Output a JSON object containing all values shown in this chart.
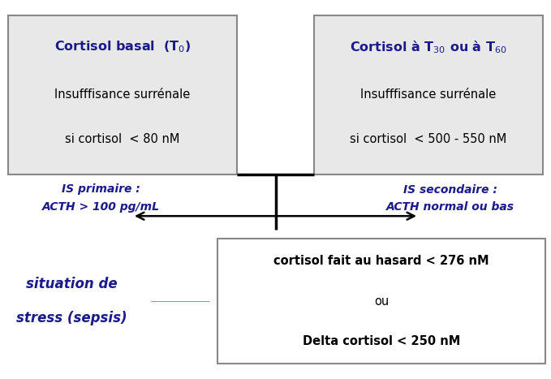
{
  "bg_color": "#ffffff",
  "box_fill": "#e8e8e8",
  "box_edge": "#888888",
  "blue_title": "#1a1a8c",
  "black_text": "#000000",
  "box1_line1": "Cortisol basal  (T$_0$)",
  "box1_line2": "Insufffisance surrénale",
  "box1_line3": "si cortisol  < 80 nM",
  "box2_line1": "Cortisol à T$_{30}$ ou à T$_{60}$",
  "box2_line2": "Insufffisance surrénale",
  "box2_line3": "si cortisol  < 500 - 550 nM",
  "left_label1": "IS primaire :",
  "left_label2": "ACTH > 100 pg/mL",
  "right_label1": "IS secondaire :",
  "right_label2": "ACTH normal ou bas",
  "stress_label1": "situation de",
  "stress_label2": "stress (sepsis)",
  "box3_line1": "cortisol fait au hasard < 276 nM",
  "box3_line2": "ou",
  "box3_line3": "Delta cortisol < 250 nM",
  "arrow_color": "#cc0000"
}
